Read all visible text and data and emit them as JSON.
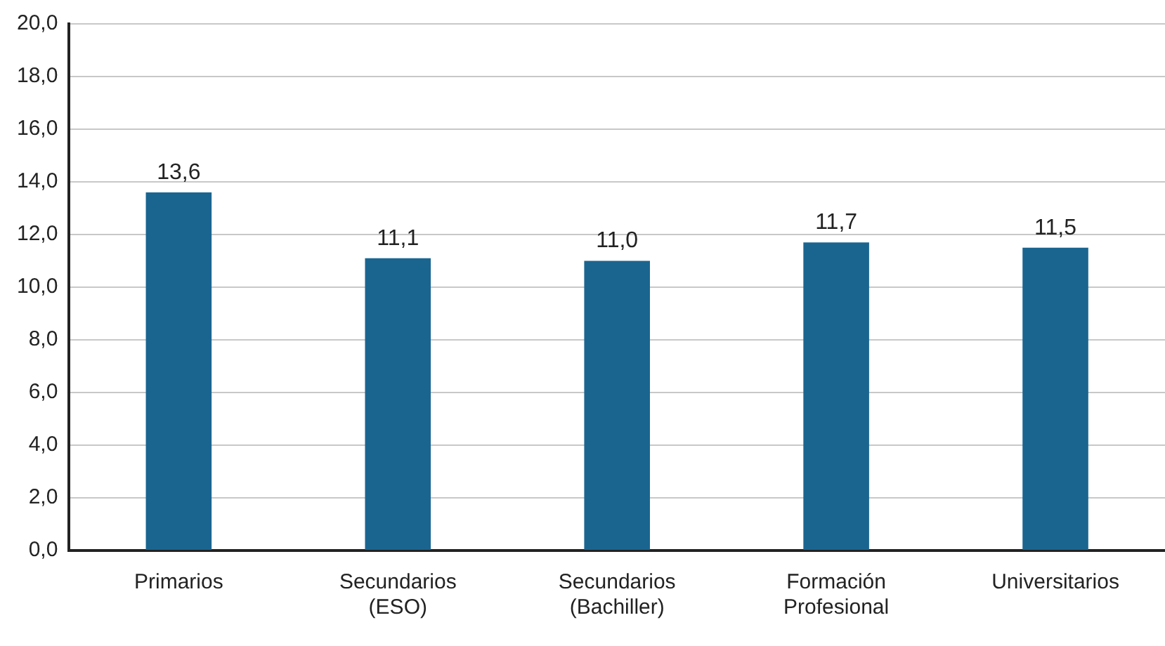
{
  "chart_data": {
    "type": "bar",
    "categories": [
      "Primarios",
      "Secundarios\n(ESO)",
      "Secundarios\n(Bachiller)",
      "Formación\nProfesional",
      "Universitarios"
    ],
    "values": [
      13.6,
      11.1,
      11.0,
      11.7,
      11.5
    ],
    "value_labels": [
      "13,6",
      "11,1",
      "11,0",
      "11,7",
      "11,5"
    ],
    "color": "#1a6590",
    "ylim": [
      0,
      20
    ],
    "yticks": [
      {
        "value": 0,
        "label": "0,0"
      },
      {
        "value": 2,
        "label": "2,0"
      },
      {
        "value": 4,
        "label": "4,0"
      },
      {
        "value": 6,
        "label": "6,0"
      },
      {
        "value": 8,
        "label": "8,0"
      },
      {
        "value": 10,
        "label": "10,0"
      },
      {
        "value": 12,
        "label": "12,0"
      },
      {
        "value": 14,
        "label": "14,0"
      },
      {
        "value": 16,
        "label": "16,0"
      },
      {
        "value": 18,
        "label": "18,0"
      },
      {
        "value": 20,
        "label": "20,0"
      }
    ],
    "grid": "y"
  }
}
